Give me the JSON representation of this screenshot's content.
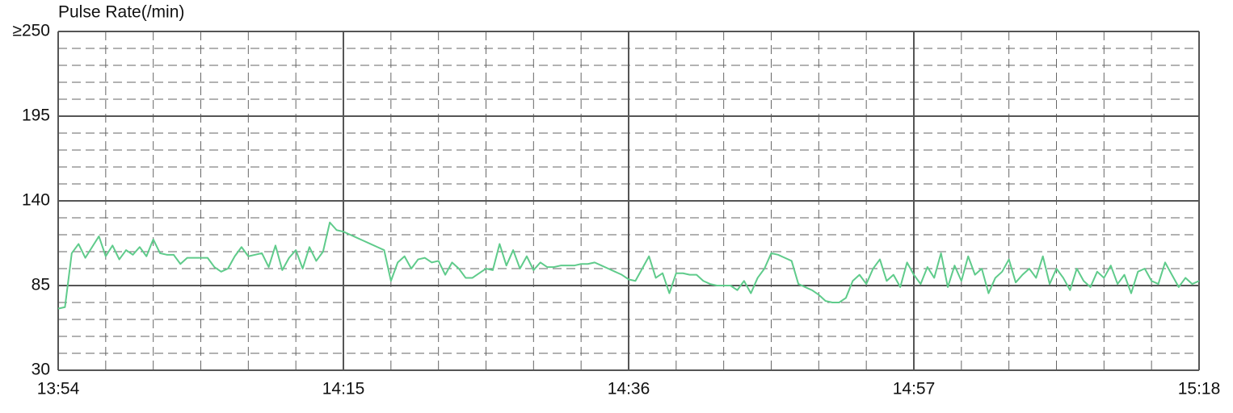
{
  "chart_data": {
    "type": "line",
    "y_axis_label": "Pulse Rate(/min)",
    "xlim": [
      "13:54",
      "15:18"
    ],
    "xticks": [
      "13:54",
      "14:15",
      "14:36",
      "14:57",
      "15:18"
    ],
    "ylim": [
      30,
      250
    ],
    "yticks": [
      30,
      85,
      140,
      195,
      {
        "value": 250,
        "label": "≥250"
      }
    ],
    "grid": true,
    "series": [
      {
        "name": "Pulse Rate",
        "color": "#5fcb8b",
        "x": [
          "13:54:00",
          "13:54:30",
          "13:55:00",
          "13:55:30",
          "13:56:00",
          "13:56:30",
          "13:57:00",
          "13:57:30",
          "13:58:00",
          "13:58:30",
          "13:59:00",
          "13:59:30",
          "14:00:00",
          "14:00:30",
          "14:01:00",
          "14:01:30",
          "14:02:00",
          "14:02:30",
          "14:03:00",
          "14:03:30",
          "14:04:00",
          "14:04:30",
          "14:05:00",
          "14:05:30",
          "14:06:00",
          "14:06:30",
          "14:07:00",
          "14:07:30",
          "14:08:00",
          "14:08:30",
          "14:09:00",
          "14:09:30",
          "14:10:00",
          "14:10:30",
          "14:11:00",
          "14:11:30",
          "14:12:00",
          "14:12:30",
          "14:13:00",
          "14:13:30",
          "14:14:00",
          "14:14:30",
          "14:15:00",
          "14:15:30",
          "14:16:00",
          "14:16:30",
          "14:17:00",
          "14:17:30",
          "14:18:00",
          "14:18:30",
          "14:19:00",
          "14:19:30",
          "14:20:00",
          "14:20:30",
          "14:21:00",
          "14:21:30",
          "14:22:00",
          "14:22:30",
          "14:23:00",
          "14:23:30",
          "14:24:00",
          "14:24:30",
          "14:25:00",
          "14:25:30",
          "14:26:00",
          "14:26:30",
          "14:27:00",
          "14:27:30",
          "14:28:00",
          "14:28:30",
          "14:29:00",
          "14:29:30",
          "14:30:00",
          "14:30:30",
          "14:31:00",
          "14:31:30",
          "14:32:00",
          "14:32:30",
          "14:33:00",
          "14:33:30",
          "14:34:00",
          "14:34:30",
          "14:35:00",
          "14:35:30",
          "14:36:00",
          "14:36:30",
          "14:37:00",
          "14:37:30",
          "14:38:00",
          "14:38:30",
          "14:39:00",
          "14:39:30",
          "14:40:00",
          "14:40:30",
          "14:41:00",
          "14:41:30",
          "14:42:00",
          "14:42:30",
          "14:43:00",
          "14:43:30",
          "14:44:00",
          "14:44:30",
          "14:45:00",
          "14:45:30",
          "14:46:00",
          "14:46:30",
          "14:47:00",
          "14:47:30",
          "14:48:00",
          "14:48:30",
          "14:49:00",
          "14:49:30",
          "14:50:00",
          "14:50:30",
          "14:51:00",
          "14:51:30",
          "14:52:00",
          "14:52:30",
          "14:53:00",
          "14:53:30",
          "14:54:00",
          "14:54:30",
          "14:55:00",
          "14:55:30",
          "14:56:00",
          "14:56:30",
          "14:57:00",
          "14:57:30",
          "14:58:00",
          "14:58:30",
          "14:59:00",
          "14:59:30",
          "15:00:00",
          "15:00:30",
          "15:01:00",
          "15:01:30",
          "15:02:00",
          "15:02:30",
          "15:03:00",
          "15:03:30",
          "15:04:00",
          "15:04:30",
          "15:05:00",
          "15:05:30",
          "15:06:00",
          "15:06:30",
          "15:07:00",
          "15:07:30",
          "15:08:00",
          "15:08:30",
          "15:09:00",
          "15:09:30",
          "15:10:00",
          "15:10:30",
          "15:11:00",
          "15:11:30",
          "15:12:00",
          "15:12:30",
          "15:13:00",
          "15:13:30",
          "15:14:00",
          "15:14:30",
          "15:15:00",
          "15:15:30",
          "15:16:00",
          "15:16:30",
          "15:17:00",
          "15:17:30",
          "15:18:00"
        ],
        "values": [
          70,
          71,
          106,
          112,
          103,
          110,
          117,
          104,
          111,
          102,
          108,
          105,
          110,
          104,
          115,
          106,
          105,
          105,
          99,
          103,
          103,
          103,
          103,
          97,
          94,
          96,
          104,
          110,
          104,
          105,
          106,
          97,
          111,
          95,
          103,
          108,
          96,
          110,
          101,
          107,
          126,
          121,
          120,
          118,
          116,
          114,
          112,
          110,
          108,
          88,
          100,
          104,
          96,
          102,
          103,
          100,
          101,
          92,
          100,
          96,
          90,
          90,
          93,
          96,
          95,
          112,
          98,
          108,
          96,
          104,
          95,
          100,
          97,
          97,
          98,
          98,
          98,
          99,
          99,
          100,
          98,
          96,
          94,
          92,
          89,
          88,
          96,
          104,
          90,
          93,
          80,
          93,
          93,
          92,
          92,
          88,
          86,
          85,
          85,
          85,
          82,
          88,
          80,
          90,
          96,
          106,
          105,
          103,
          101,
          86,
          84,
          82,
          79,
          75,
          74,
          74,
          77,
          88,
          92,
          86,
          96,
          102,
          88,
          92,
          84,
          100,
          92,
          86,
          97,
          90,
          106,
          84,
          98,
          88,
          104,
          92,
          96,
          80,
          90,
          94,
          102,
          87,
          92,
          96,
          90,
          104,
          86,
          96,
          90,
          82,
          96,
          88,
          84,
          94,
          90,
          98,
          86,
          92,
          80,
          94,
          96,
          88,
          86,
          100,
          92,
          84,
          90,
          86,
          88
        ]
      }
    ]
  }
}
